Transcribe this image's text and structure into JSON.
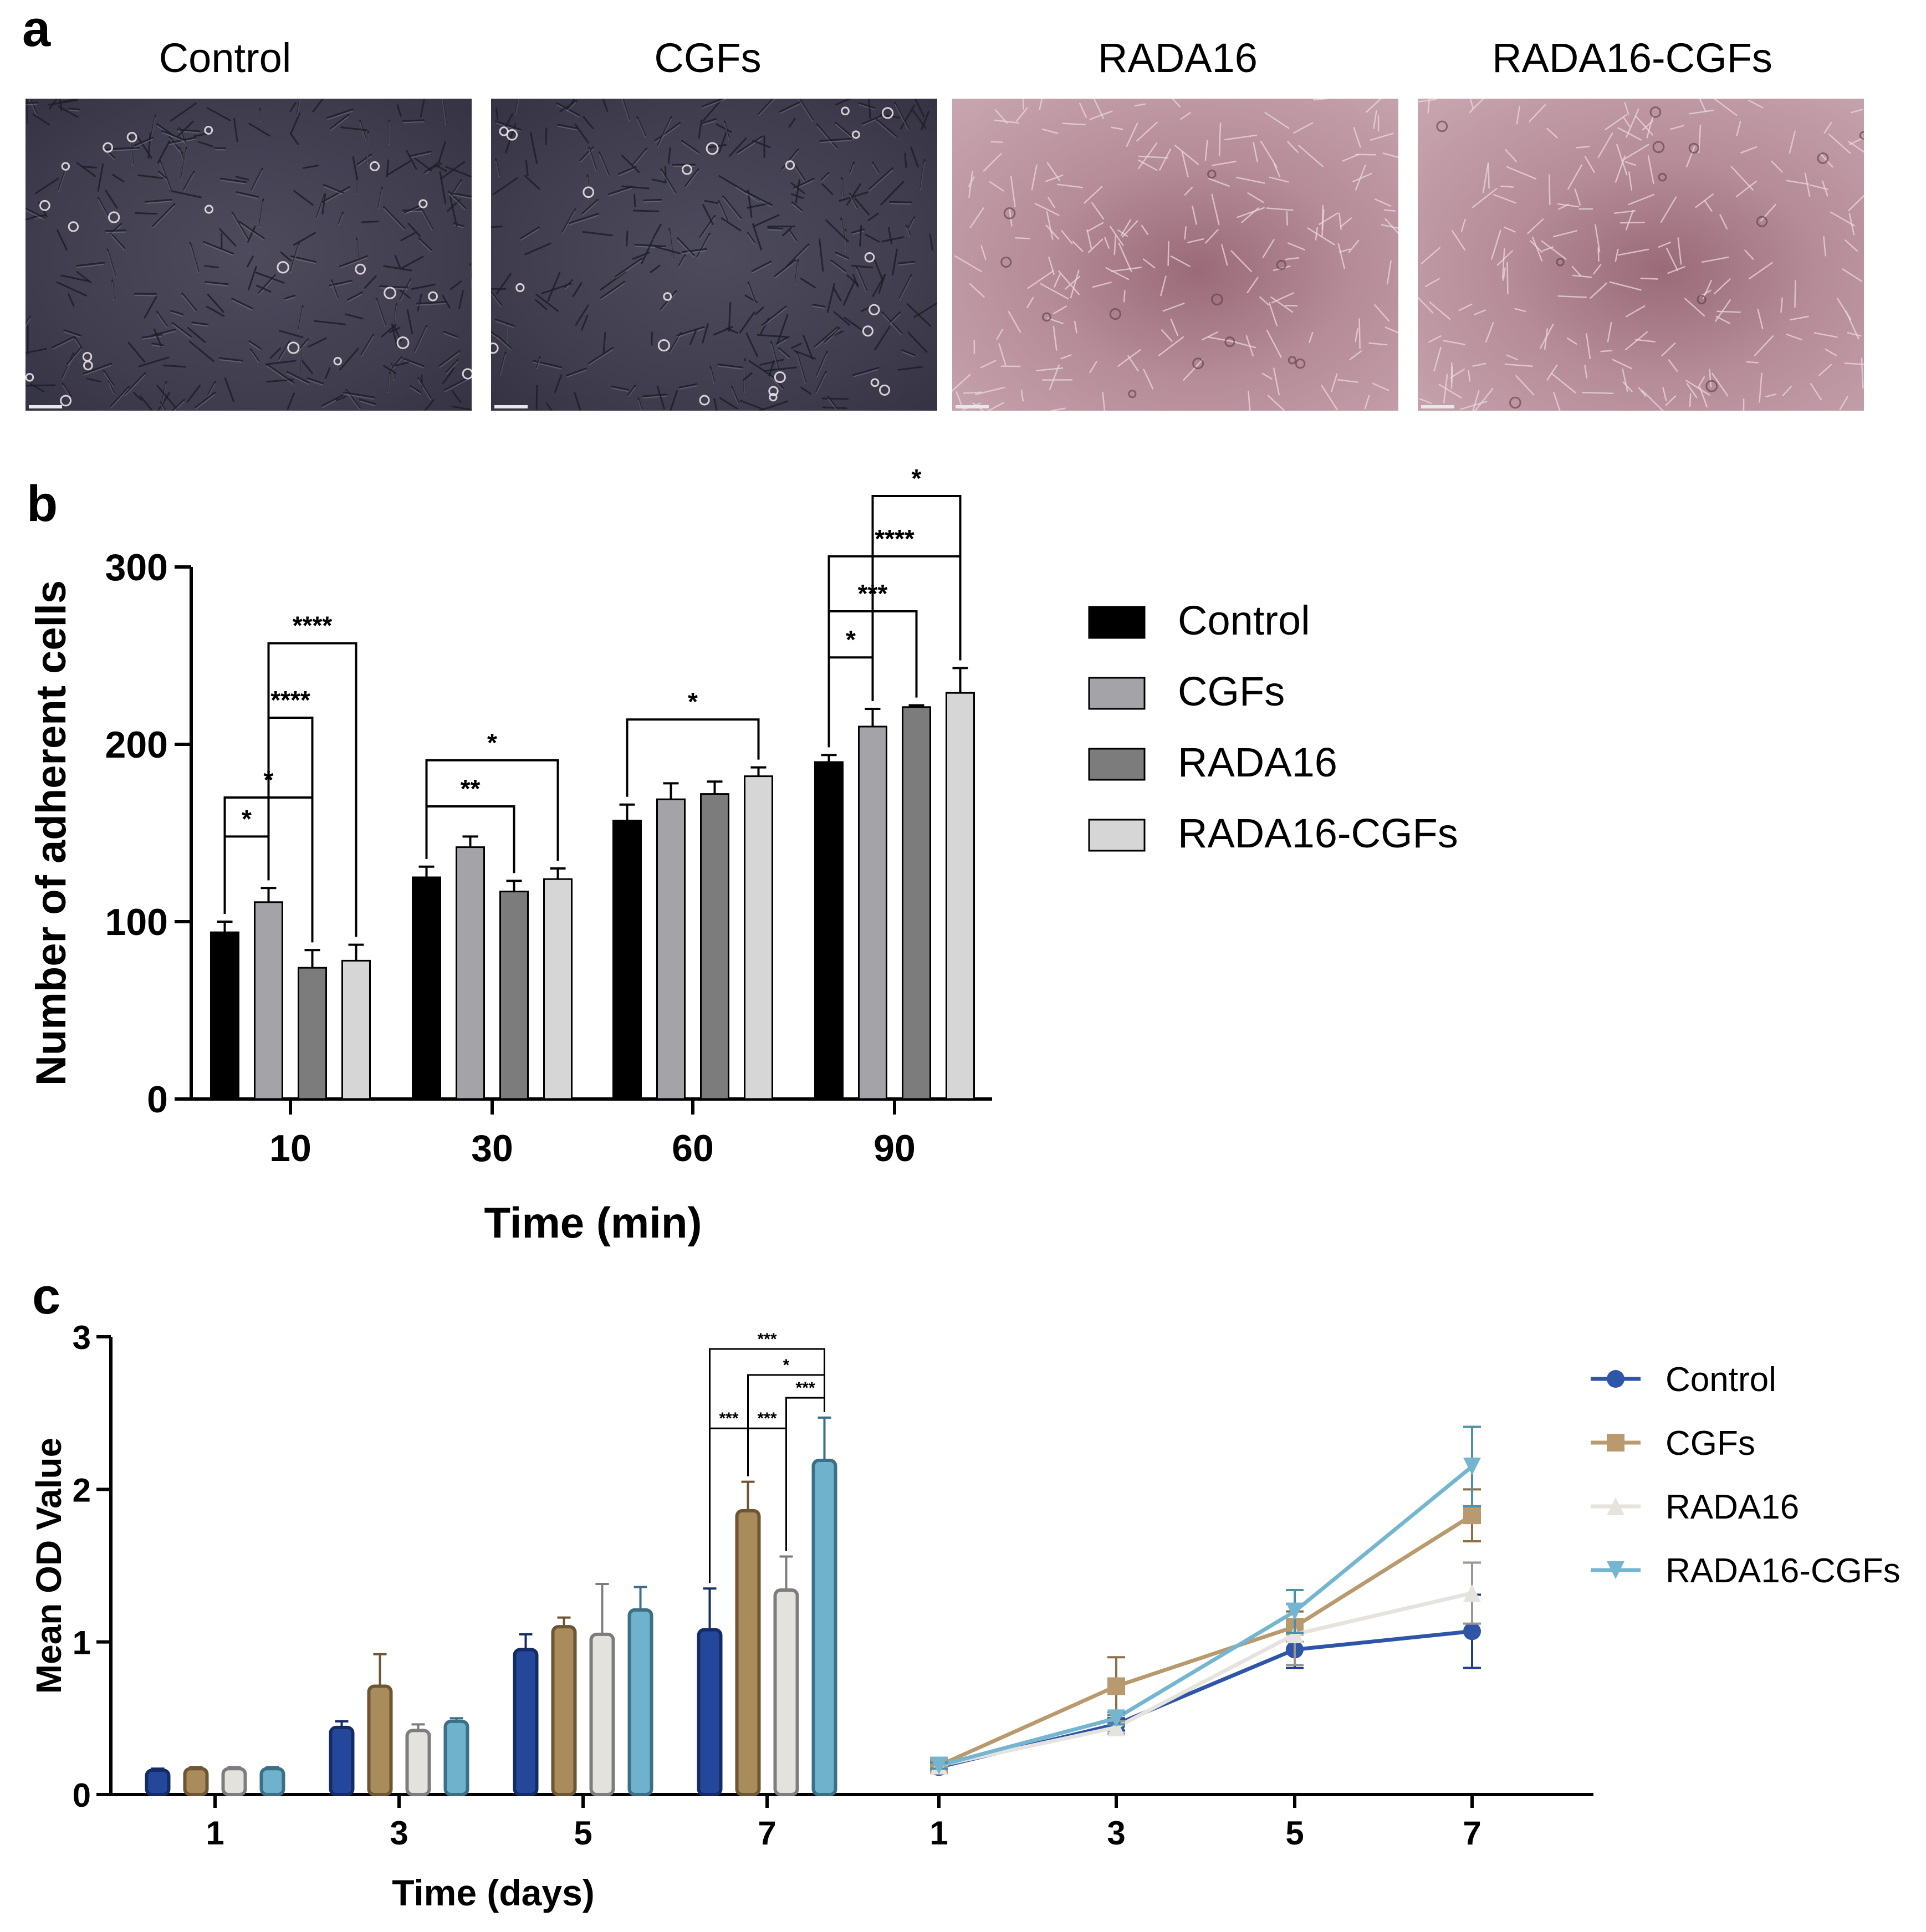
{
  "panel_a": {
    "letter": "a",
    "images": [
      {
        "title": "Control",
        "style": "phase"
      },
      {
        "title": "CGFs",
        "style": "phase"
      },
      {
        "title": "RADA16",
        "style": "pink"
      },
      {
        "title": "RADA16-CGFs",
        "style": "pink"
      }
    ]
  },
  "chart_data": [
    {
      "panel": "b",
      "type": "bar",
      "title": "",
      "xlabel": "Time (min)",
      "ylabel": "Number of adherent cells",
      "ylim": [
        0,
        300
      ],
      "yticks": [
        "0",
        "100",
        "200",
        "300"
      ],
      "categories": [
        "10",
        "30",
        "60",
        "90"
      ],
      "colors": [
        "#000000",
        "#a4a4a8",
        "#7c7c7c",
        "#d6d6d6"
      ],
      "legend_position": "right",
      "series": [
        {
          "name": "Control",
          "values": [
            94,
            125,
            157,
            190
          ],
          "errors": [
            6,
            6,
            9,
            4
          ]
        },
        {
          "name": "CGFs",
          "values": [
            111,
            142,
            169,
            210
          ],
          "errors": [
            8,
            6,
            9,
            10
          ]
        },
        {
          "name": "RADA16",
          "values": [
            74,
            117,
            172,
            221
          ],
          "errors": [
            10,
            6,
            7,
            1
          ]
        },
        {
          "name": "RADA16-CGFs",
          "values": [
            78,
            124,
            182,
            229
          ],
          "errors": [
            9,
            6,
            5,
            14
          ]
        }
      ],
      "significance": [
        {
          "category": 0,
          "from": 0,
          "to": 1,
          "label": "*",
          "level": 148
        },
        {
          "category": 0,
          "from": 0,
          "to": 2,
          "label": "*",
          "level": 170
        },
        {
          "category": 0,
          "from": 1,
          "to": 2,
          "label": "****",
          "level": 215
        },
        {
          "category": 0,
          "from": 1,
          "to": 3,
          "label": "****",
          "level": 257
        },
        {
          "category": 1,
          "from": 0,
          "to": 2,
          "label": "**",
          "level": 165
        },
        {
          "category": 1,
          "from": 0,
          "to": 3,
          "label": "*",
          "level": 191
        },
        {
          "category": 2,
          "from": 0,
          "to": 3,
          "label": "*",
          "level": 214
        },
        {
          "category": 3,
          "from": 0,
          "to": 1,
          "label": "*",
          "level": 249
        },
        {
          "category": 3,
          "from": 0,
          "to": 2,
          "label": "***",
          "level": 275
        },
        {
          "category": 3,
          "from": 0,
          "to": 3,
          "label": "****",
          "level": 306
        },
        {
          "category": 3,
          "from": 1,
          "to": 3,
          "label": "*",
          "level": 340
        }
      ]
    },
    {
      "panel": "c",
      "type": "bar",
      "title": "",
      "xlabel": "Time (days)",
      "ylabel": "Mean OD Value",
      "ylim": [
        0,
        3
      ],
      "yticks": [
        "0",
        "1",
        "2",
        "3"
      ],
      "categories": [
        "1",
        "3",
        "5",
        "7"
      ],
      "colors": [
        "#24479a",
        "#a98c5c",
        "#e4e2dc",
        "#6fb2cc"
      ],
      "series": [
        {
          "name": "Control",
          "values": [
            0.16,
            0.44,
            0.95,
            1.08
          ],
          "errors": [
            0.01,
            0.04,
            0.1,
            0.27
          ]
        },
        {
          "name": "CGFs",
          "values": [
            0.17,
            0.71,
            1.1,
            1.86
          ],
          "errors": [
            0.01,
            0.21,
            0.06,
            0.19
          ]
        },
        {
          "name": "RADA16",
          "values": [
            0.17,
            0.42,
            1.05,
            1.34
          ],
          "errors": [
            0.01,
            0.04,
            0.33,
            0.22
          ]
        },
        {
          "name": "RADA16-CGFs",
          "values": [
            0.17,
            0.48,
            1.21,
            2.19
          ],
          "errors": [
            0.01,
            0.02,
            0.15,
            0.28
          ]
        }
      ],
      "significance": [
        {
          "category": 3,
          "from": 0,
          "to": 3,
          "label": "***",
          "level": 2.92
        },
        {
          "category": 3,
          "from": 1,
          "to": 3,
          "label": "*",
          "level": 2.75
        },
        {
          "category": 3,
          "from": 2,
          "to": 3,
          "label": "***",
          "level": 2.6
        },
        {
          "category": 3,
          "from": 0,
          "to": 1,
          "label": "***",
          "level": 2.4
        },
        {
          "category": 3,
          "from": 1,
          "to": 2,
          "label": "***",
          "level": 2.4
        }
      ]
    },
    {
      "panel": "c",
      "type": "line",
      "xlabel": "",
      "ylabel": "Mean OD Value",
      "ylim": [
        0,
        3
      ],
      "x": [
        "1",
        "3",
        "5",
        "7"
      ],
      "colors": [
        "#2f55a8",
        "#b99a6e",
        "#e6e3de",
        "#74b6d0"
      ],
      "markers": [
        "circle",
        "square",
        "triangle-up",
        "triangle-down"
      ],
      "legend_position": "right",
      "series": [
        {
          "name": "Control",
          "values": [
            0.18,
            0.46,
            0.95,
            1.07
          ],
          "errors": [
            0.02,
            0.04,
            0.12,
            0.24
          ]
        },
        {
          "name": "CGFs",
          "values": [
            0.19,
            0.71,
            1.1,
            1.83
          ],
          "errors": [
            0.02,
            0.19,
            0.1,
            0.17
          ]
        },
        {
          "name": "RADA16",
          "values": [
            0.19,
            0.44,
            1.05,
            1.32
          ],
          "errors": [
            0.02,
            0.04,
            0.2,
            0.2
          ]
        },
        {
          "name": "RADA16-CGFs",
          "values": [
            0.19,
            0.5,
            1.2,
            2.15
          ],
          "errors": [
            0.02,
            0.04,
            0.14,
            0.26
          ]
        }
      ]
    }
  ],
  "panel_b": {
    "letter": "b"
  },
  "panel_c": {
    "letter": "c"
  }
}
